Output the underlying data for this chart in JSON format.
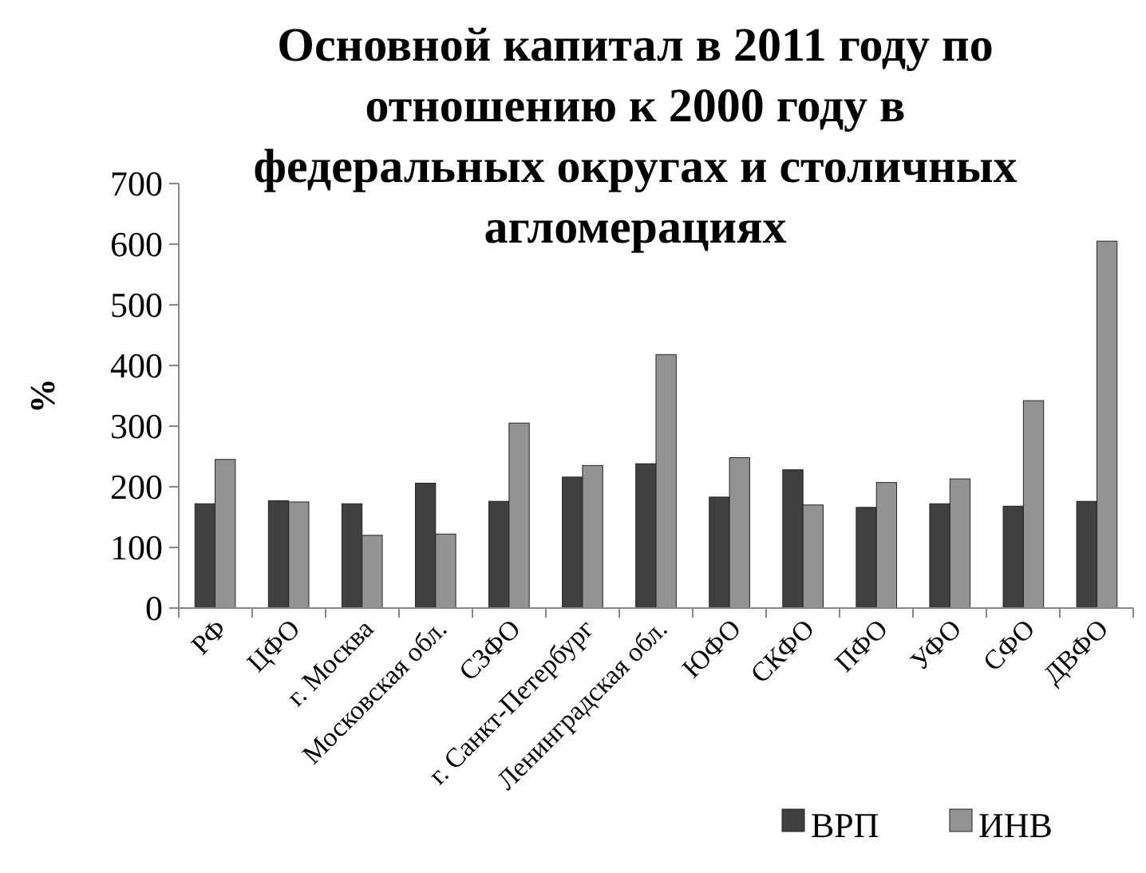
{
  "chart_data": {
    "type": "bar",
    "title": "Основной капитал в 2011 году по отношению к 2000 году в федеральных округах и столичных агломерациях",
    "ylabel": "%",
    "categories": [
      "РФ",
      "ЦФО",
      "г. Москва",
      "Московская обл.",
      "СЗФО",
      "г. Санкт-Петербург",
      "Ленинградская обл.",
      "ЮФО",
      "СКФО",
      "ПФО",
      "УФО",
      "СФО",
      "ДВФО"
    ],
    "series": [
      {
        "name": "ВРП",
        "color": "#404040",
        "values": [
          172,
          177,
          172,
          206,
          176,
          216,
          238,
          183,
          228,
          166,
          172,
          168,
          176
        ]
      },
      {
        "name": "ИНВ",
        "color": "#939393",
        "values": [
          245,
          175,
          120,
          122,
          305,
          235,
          418,
          248,
          170,
          207,
          213,
          342,
          605
        ]
      }
    ],
    "ylim": [
      0,
      700
    ],
    "yticks": [
      0,
      100,
      200,
      300,
      400,
      500,
      600,
      700
    ],
    "grid": false,
    "legend": "bottom right"
  }
}
